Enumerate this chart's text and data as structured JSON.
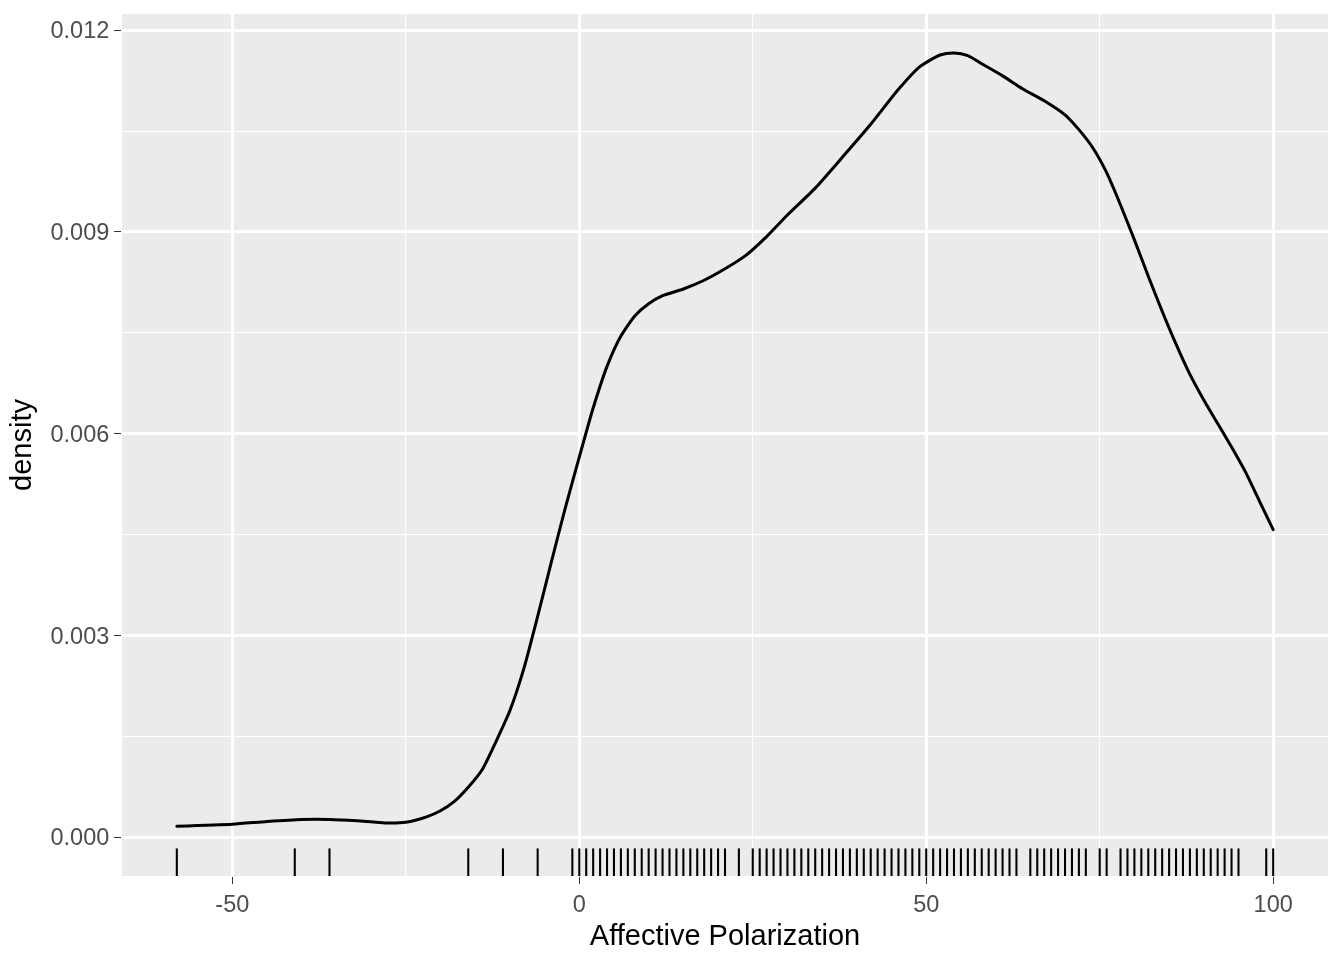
{
  "chart_data": {
    "type": "line",
    "xlabel": "Affective Polarization",
    "ylabel": "density",
    "xlim": [
      -65.9,
      107.9
    ],
    "ylim": [
      -0.00058,
      0.01224
    ],
    "xticks": [
      -50,
      0,
      50,
      100
    ],
    "yticks": [
      {
        "value": 0,
        "label": "0.000"
      },
      0.003,
      0.006,
      0.009,
      0.012
    ],
    "grid": true,
    "series": [
      {
        "color": "#000000",
        "x": [
          -58,
          -50,
          -45,
          -40,
          -36,
          -32,
          -28,
          -25,
          -22,
          -20,
          -18,
          -16,
          -14,
          -12,
          -10,
          -8,
          -6,
          -4,
          -2,
          0,
          2,
          4,
          6,
          8,
          10,
          12,
          15,
          18,
          21,
          24,
          27,
          30,
          34,
          38,
          42,
          46,
          49,
          52,
          54,
          56,
          58,
          61,
          64,
          67,
          70,
          72,
          74,
          76,
          78,
          80,
          82,
          84,
          86,
          88,
          90,
          92,
          94,
          96,
          98,
          100
        ],
        "values": [
          0.00016,
          0.00019,
          0.00023,
          0.00026,
          0.00026,
          0.00024,
          0.00021,
          0.00022,
          0.0003,
          0.00039,
          0.00053,
          0.00074,
          0.001,
          0.00142,
          0.00188,
          0.0025,
          0.00328,
          0.0041,
          0.0049,
          0.00565,
          0.00638,
          0.007,
          0.00745,
          0.00775,
          0.00793,
          0.00805,
          0.00815,
          0.00828,
          0.00845,
          0.00865,
          0.00893,
          0.00925,
          0.00965,
          0.01012,
          0.0106,
          0.01112,
          0.01145,
          0.01163,
          0.01166,
          0.01162,
          0.0115,
          0.01132,
          0.01112,
          0.01095,
          0.01074,
          0.01052,
          0.01025,
          0.00988,
          0.0094,
          0.00888,
          0.00834,
          0.00782,
          0.00733,
          0.00688,
          0.0065,
          0.00615,
          0.0058,
          0.00543,
          0.005,
          0.00457
        ]
      },
      {
        "type": "bar",
        "color": "#000000",
        "x": [
          -58,
          -41,
          -36,
          -16,
          -11,
          -6,
          -1,
          0,
          1,
          2,
          3,
          4,
          5,
          6,
          7,
          8,
          9,
          10,
          11,
          12,
          13,
          14,
          15,
          16,
          17,
          18,
          19,
          20,
          21,
          23,
          25,
          26,
          27,
          28,
          29,
          30,
          31,
          32,
          33,
          34,
          35,
          36,
          37,
          38,
          39,
          40,
          41,
          42,
          43,
          44,
          45,
          46,
          47,
          48,
          49,
          50,
          51,
          52,
          53,
          54,
          55,
          56,
          57,
          58,
          59,
          60,
          61,
          62,
          63,
          65,
          66,
          67,
          68,
          69,
          70,
          71,
          72,
          73,
          75,
          76,
          78,
          79,
          80,
          81,
          82,
          83,
          84,
          85,
          86,
          87,
          88,
          89,
          90,
          91,
          92,
          93,
          94,
          95,
          99,
          100
        ],
        "base": [
          -0.00058,
          -0.00058,
          -0.00058,
          -0.00058,
          -0.00058,
          -0.00058,
          -0.00058,
          -0.00058,
          -0.00058,
          -0.00058,
          -0.00058,
          -0.00058,
          -0.00058,
          -0.00058,
          -0.00058,
          -0.00058,
          -0.00058,
          -0.00058,
          -0.00058,
          -0.00058,
          -0.00058,
          -0.00058,
          -0.00058,
          -0.00058,
          -0.00058,
          -0.00058,
          -0.00058,
          -0.00058,
          -0.00058,
          -0.00058,
          -0.00058,
          -0.00058,
          -0.00058,
          -0.00058,
          -0.00058,
          -0.00058,
          -0.00058,
          -0.00058,
          -0.00058,
          -0.00058,
          -0.00058,
          -0.00058,
          -0.00058,
          -0.00058,
          -0.00058,
          -0.00058,
          -0.00058,
          -0.00058,
          -0.00058,
          -0.00058,
          -0.00058,
          -0.00058,
          -0.00058,
          -0.00058,
          -0.00058,
          -0.00058,
          -0.00058,
          -0.00058,
          -0.00058,
          -0.00058,
          -0.00058,
          -0.00058,
          -0.00058,
          -0.00058,
          -0.00058,
          -0.00058,
          -0.00058,
          -0.00058,
          -0.00058,
          -0.00058,
          -0.00058,
          -0.00058,
          -0.00058,
          -0.00058,
          -0.00058,
          -0.00058,
          -0.00058,
          -0.00058,
          -0.00058,
          -0.00058,
          -0.00058,
          -0.00058,
          -0.00058,
          -0.00058,
          -0.00058,
          -0.00058,
          -0.00058,
          -0.00058,
          -0.00058,
          -0.00058,
          -0.00058,
          -0.00058,
          -0.00058,
          -0.00058,
          -0.00058,
          -0.00058,
          -0.00058,
          -0.00058,
          -0.00058,
          -0.00058
        ],
        "values": [
          0.00041,
          0.00041,
          0.00041,
          0.00041,
          0.00041,
          0.00041,
          0.00041,
          0.00041,
          0.00041,
          0.00041,
          0.00041,
          0.00041,
          0.00041,
          0.00041,
          0.00041,
          0.00041,
          0.00041,
          0.00041,
          0.00041,
          0.00041,
          0.00041,
          0.00041,
          0.00041,
          0.00041,
          0.00041,
          0.00041,
          0.00041,
          0.00041,
          0.00041,
          0.00041,
          0.00041,
          0.00041,
          0.00041,
          0.00041,
          0.00041,
          0.00041,
          0.00041,
          0.00041,
          0.00041,
          0.00041,
          0.00041,
          0.00041,
          0.00041,
          0.00041,
          0.00041,
          0.00041,
          0.00041,
          0.00041,
          0.00041,
          0.00041,
          0.00041,
          0.00041,
          0.00041,
          0.00041,
          0.00041,
          0.00041,
          0.00041,
          0.00041,
          0.00041,
          0.00041,
          0.00041,
          0.00041,
          0.00041,
          0.00041,
          0.00041,
          0.00041,
          0.00041,
          0.00041,
          0.00041,
          0.00041,
          0.00041,
          0.00041,
          0.00041,
          0.00041,
          0.00041,
          0.00041,
          0.00041,
          0.00041,
          0.00041,
          0.00041,
          0.00041,
          0.00041,
          0.00041,
          0.00041,
          0.00041,
          0.00041,
          0.00041,
          0.00041,
          0.00041,
          0.00041,
          0.00041,
          0.00041,
          0.00041,
          0.00041,
          0.00041,
          0.00041,
          0.00041,
          0.00041,
          0.00041,
          0.00041
        ]
      }
    ]
  }
}
